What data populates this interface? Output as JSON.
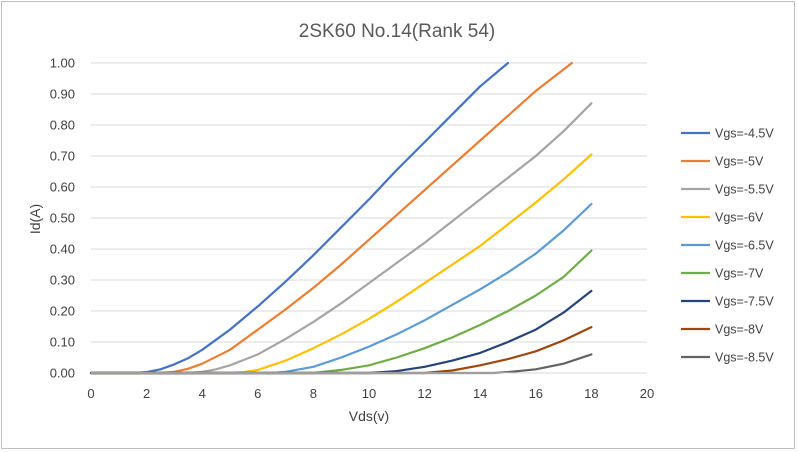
{
  "chart_data": {
    "type": "line",
    "title": "2SK60 No.14(Rank 54)",
    "xlabel": "Vds(v)",
    "ylabel": "Id(A)",
    "xlim": [
      0,
      20
    ],
    "ylim": [
      0,
      1.0
    ],
    "xticks": [
      "0",
      "2",
      "4",
      "6",
      "8",
      "10",
      "12",
      "14",
      "16",
      "18",
      "20"
    ],
    "yticks": [
      "0.00",
      "0.10",
      "0.20",
      "0.30",
      "0.40",
      "0.50",
      "0.60",
      "0.70",
      "0.80",
      "0.90",
      "1.00"
    ],
    "grid": "horizontal",
    "legend_position": "right",
    "series": [
      {
        "name": "Vgs=-4.5V",
        "color": "#4472C4",
        "x": [
          0,
          1.5,
          2,
          2.5,
          3,
          3.5,
          4,
          5,
          6,
          7,
          8,
          9,
          10,
          11,
          12,
          13,
          14,
          15
        ],
        "y": [
          0,
          0,
          0.003,
          0.012,
          0.028,
          0.048,
          0.075,
          0.14,
          0.215,
          0.295,
          0.38,
          0.47,
          0.56,
          0.655,
          0.745,
          0.835,
          0.925,
          1.0
        ]
      },
      {
        "name": "Vgs=-5V",
        "color": "#ED7D31",
        "x": [
          0,
          2.5,
          3,
          3.5,
          4,
          5,
          6,
          7,
          8,
          9,
          10,
          11,
          12,
          13,
          14,
          15,
          16,
          17.3
        ],
        "y": [
          0,
          0,
          0.004,
          0.014,
          0.03,
          0.075,
          0.14,
          0.205,
          0.275,
          0.35,
          0.43,
          0.51,
          0.59,
          0.67,
          0.75,
          0.83,
          0.91,
          1.0
        ]
      },
      {
        "name": "Vgs=-5.5V",
        "color": "#A5A5A5",
        "x": [
          0,
          3.5,
          4,
          4.5,
          5,
          6,
          7,
          8,
          9,
          10,
          11,
          12,
          13,
          14,
          15,
          16,
          17,
          18
        ],
        "y": [
          0,
          0,
          0.004,
          0.012,
          0.025,
          0.06,
          0.11,
          0.165,
          0.225,
          0.29,
          0.355,
          0.42,
          0.49,
          0.56,
          0.63,
          0.7,
          0.78,
          0.87
        ]
      },
      {
        "name": "Vgs=-6V",
        "color": "#FFC000",
        "x": [
          0,
          5,
          5.5,
          6,
          7,
          8,
          9,
          10,
          11,
          12,
          13,
          14,
          15,
          16,
          17,
          18
        ],
        "y": [
          0,
          0,
          0.003,
          0.01,
          0.04,
          0.08,
          0.125,
          0.175,
          0.23,
          0.29,
          0.35,
          0.41,
          0.48,
          0.55,
          0.625,
          0.705
        ]
      },
      {
        "name": "Vgs=-6.5V",
        "color": "#5B9BD5",
        "x": [
          0,
          6.5,
          7,
          8,
          9,
          10,
          11,
          12,
          13,
          14,
          15,
          16,
          17,
          18
        ],
        "y": [
          0,
          0,
          0.004,
          0.02,
          0.05,
          0.085,
          0.125,
          0.17,
          0.22,
          0.27,
          0.325,
          0.385,
          0.46,
          0.545
        ]
      },
      {
        "name": "Vgs=-7V",
        "color": "#70AD47",
        "x": [
          0,
          8,
          9,
          10,
          11,
          12,
          13,
          14,
          15,
          16,
          17,
          18
        ],
        "y": [
          0,
          0,
          0.01,
          0.025,
          0.05,
          0.08,
          0.115,
          0.155,
          0.2,
          0.25,
          0.31,
          0.395
        ]
      },
      {
        "name": "Vgs=-7.5V",
        "color": "#264478",
        "x": [
          0,
          10,
          11,
          12,
          13,
          14,
          15,
          16,
          17,
          18
        ],
        "y": [
          0,
          0,
          0.006,
          0.02,
          0.04,
          0.065,
          0.1,
          0.14,
          0.195,
          0.265
        ]
      },
      {
        "name": "Vgs=-8V",
        "color": "#9E480E",
        "x": [
          0,
          12,
          13,
          14,
          15,
          16,
          17,
          18
        ],
        "y": [
          0,
          0,
          0.008,
          0.025,
          0.045,
          0.07,
          0.105,
          0.148
        ]
      },
      {
        "name": "Vgs=-8.5V",
        "color": "#636363",
        "x": [
          0,
          14.5,
          15,
          16,
          17,
          18
        ],
        "y": [
          0,
          0,
          0.003,
          0.012,
          0.03,
          0.06
        ]
      }
    ]
  }
}
